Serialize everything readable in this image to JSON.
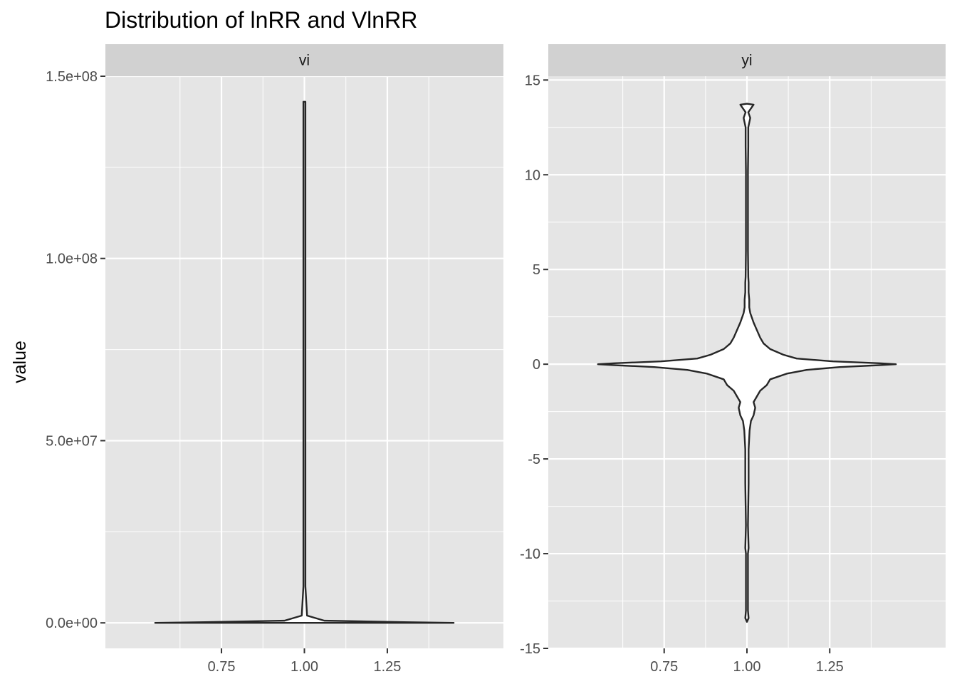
{
  "chart_data": {
    "type": "violin",
    "title": "Distribution of lnRR and VlnRR",
    "ylabel": "value",
    "xlabel": "",
    "grid": true,
    "legend": "none",
    "colors": {
      "panel_bg": "#e5e5e5",
      "grid": "#ffffff",
      "strip_bg": "#d1d1d1",
      "outline": "#262626",
      "fill": "#ffffff",
      "tick_text": "#4d4d4d"
    },
    "panels": [
      {
        "strip": "vi",
        "xlim": [
          0.4,
          1.6
        ],
        "ylim": [
          -7000000,
          150000000
        ],
        "x_ticks": [
          0.75,
          1.0,
          1.25
        ],
        "x_tick_labels": [
          "0.75",
          "1.00",
          "1.25"
        ],
        "y_ticks": [
          0,
          50000000,
          100000000,
          150000000
        ],
        "y_tick_labels": [
          "0.0e+00",
          "5.0e+07",
          "1.0e+08",
          "1.5e+08"
        ],
        "violin": {
          "x": 1.0,
          "profile": [
            [
              0,
              0.45
            ],
            [
              200000,
              0.3
            ],
            [
              600000,
              0.06
            ],
            [
              2000000,
              0.008
            ],
            [
              10000000,
              0.003
            ],
            [
              143000000,
              0.003
            ]
          ]
        }
      },
      {
        "strip": "yi",
        "xlim": [
          0.4,
          1.6
        ],
        "ylim": [
          -15,
          15.2
        ],
        "x_ticks": [
          0.75,
          1.0,
          1.25
        ],
        "x_tick_labels": [
          "0.75",
          "1.00",
          "1.25"
        ],
        "y_ticks": [
          -15,
          -10,
          -5,
          0,
          5,
          10,
          15
        ],
        "y_tick_labels": [
          "-15",
          "-10",
          "-5",
          "0",
          "5",
          "10",
          "15"
        ],
        "violin": {
          "x": 1.0,
          "profile": [
            [
              -13.6,
              0.0
            ],
            [
              -13.4,
              0.005
            ],
            [
              -13.0,
              0.003
            ],
            [
              -10.0,
              0.003
            ],
            [
              -9.7,
              0.005
            ],
            [
              -8.5,
              0.003
            ],
            [
              -6.3,
              0.005
            ],
            [
              -4.5,
              0.005
            ],
            [
              -3.5,
              0.008
            ],
            [
              -3.0,
              0.012
            ],
            [
              -2.7,
              0.02
            ],
            [
              -2.3,
              0.025
            ],
            [
              -2.0,
              0.02
            ],
            [
              -1.7,
              0.03
            ],
            [
              -1.4,
              0.04
            ],
            [
              -1.1,
              0.06
            ],
            [
              -0.8,
              0.07
            ],
            [
              -0.5,
              0.12
            ],
            [
              -0.3,
              0.18
            ],
            [
              -0.15,
              0.28
            ],
            [
              -0.05,
              0.4
            ],
            [
              0.0,
              0.45
            ],
            [
              0.05,
              0.4
            ],
            [
              0.15,
              0.26
            ],
            [
              0.3,
              0.15
            ],
            [
              0.5,
              0.11
            ],
            [
              0.8,
              0.07
            ],
            [
              1.1,
              0.05
            ],
            [
              1.4,
              0.04
            ],
            [
              1.8,
              0.03
            ],
            [
              2.2,
              0.02
            ],
            [
              2.7,
              0.01
            ],
            [
              3.0,
              0.007
            ],
            [
              3.4,
              0.007
            ],
            [
              3.8,
              0.005
            ],
            [
              4.3,
              0.005
            ],
            [
              4.6,
              0.004
            ],
            [
              6.0,
              0.003
            ],
            [
              8.6,
              0.003
            ],
            [
              10.2,
              0.003
            ],
            [
              11.5,
              0.004
            ],
            [
              12.5,
              0.004
            ],
            [
              13.0,
              0.01
            ],
            [
              13.3,
              0.004
            ],
            [
              13.7,
              0.02
            ],
            [
              13.75,
              0.0
            ]
          ]
        }
      }
    ]
  }
}
